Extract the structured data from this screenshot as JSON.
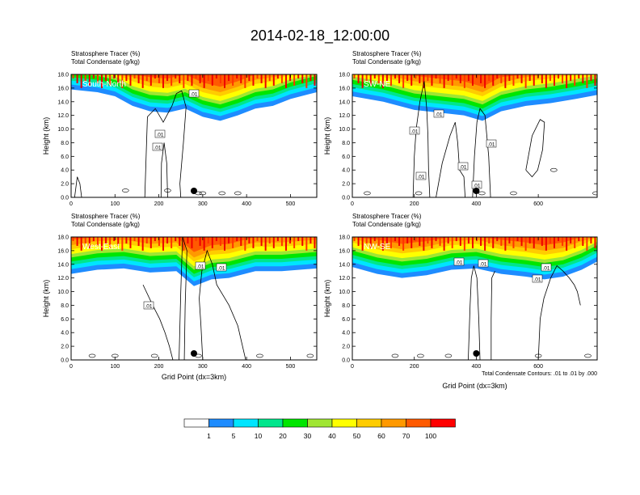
{
  "figure": {
    "title": "2014-02-18_12:00:00",
    "footnote": "Total Condensate Contours: .01 to .01 by .000"
  },
  "colorbar": {
    "colors": [
      "#ffffff",
      "#1e8cff",
      "#00e5ff",
      "#00e68c",
      "#00e600",
      "#a0e632",
      "#ffff00",
      "#ffcc00",
      "#ff9900",
      "#ff5a00",
      "#ff0000"
    ],
    "labels": [
      "1",
      "5",
      "10",
      "20",
      "30",
      "40",
      "50",
      "60",
      "70",
      "100"
    ]
  },
  "chart_data": [
    {
      "type": "contour",
      "panel_label": "South-North",
      "title_lines": [
        "Stratosphere Tracer   (%)",
        "Total Condensate   (g/kg)"
      ],
      "ylabel": "Height (km)",
      "xlabel": "",
      "xlim": [
        0,
        560
      ],
      "ylim": [
        0,
        18
      ],
      "x_ticks": [
        "0",
        "100",
        "200",
        "300",
        "400",
        "500"
      ],
      "y_ticks": [
        "0.0",
        "2.0",
        "4.0",
        "6.0",
        "8.0",
        "10.0",
        "12.0",
        "14.0",
        "16.0",
        "18.0"
      ],
      "contour_labels": [
        ".01",
        ".01",
        ".01"
      ],
      "marker_x": 280,
      "tracer_base_km": [
        {
          "x": 0,
          "y": 15.6
        },
        {
          "x": 60,
          "y": 15.2
        },
        {
          "x": 100,
          "y": 14.6
        },
        {
          "x": 140,
          "y": 13.2
        },
        {
          "x": 180,
          "y": 12.4
        },
        {
          "x": 220,
          "y": 12.2
        },
        {
          "x": 260,
          "y": 12.8
        },
        {
          "x": 300,
          "y": 11.6
        },
        {
          "x": 340,
          "y": 11.0
        },
        {
          "x": 380,
          "y": 11.8
        },
        {
          "x": 420,
          "y": 12.8
        },
        {
          "x": 460,
          "y": 13.2
        },
        {
          "x": 500,
          "y": 14.2
        },
        {
          "x": 560,
          "y": 15.2
        }
      ]
    },
    {
      "type": "contour",
      "panel_label": "SW-NE",
      "title_lines": [
        "Stratosphere Tracer   (%)",
        "Total Condensate   (g/kg)"
      ],
      "ylabel": "Height (km)",
      "xlabel": "",
      "xlim": [
        0,
        790
      ],
      "ylim": [
        0,
        18
      ],
      "x_ticks": [
        "0",
        "200",
        "400",
        "600"
      ],
      "y_ticks": [
        "0.0",
        "2.0",
        "4.0",
        "6.0",
        "8.0",
        "10.0",
        "12.0",
        "14.0",
        "16.0",
        "18.0"
      ],
      "contour_labels": [
        ".01",
        ".01",
        ".01",
        ".01",
        ".01",
        ".01"
      ],
      "marker_x": 400,
      "tracer_base_km": [
        {
          "x": 0,
          "y": 14.6
        },
        {
          "x": 100,
          "y": 13.8
        },
        {
          "x": 200,
          "y": 12.6
        },
        {
          "x": 280,
          "y": 12.2
        },
        {
          "x": 360,
          "y": 11.8
        },
        {
          "x": 420,
          "y": 11.0
        },
        {
          "x": 480,
          "y": 12.4
        },
        {
          "x": 560,
          "y": 13.2
        },
        {
          "x": 640,
          "y": 13.6
        },
        {
          "x": 720,
          "y": 14.2
        },
        {
          "x": 790,
          "y": 14.8
        }
      ]
    },
    {
      "type": "contour",
      "panel_label": "West-East",
      "title_lines": [
        "Stratosphere Tracer   (%)",
        "Total Condensate   (g/kg)"
      ],
      "ylabel": "Height (km)",
      "xlabel": "Grid Point (dx=3km)",
      "xlim": [
        0,
        560
      ],
      "ylim": [
        0,
        18
      ],
      "x_ticks": [
        "0",
        "100",
        "200",
        "300",
        "400",
        "500"
      ],
      "y_ticks": [
        "0.0",
        "2.0",
        "4.0",
        "6.0",
        "8.0",
        "10.0",
        "12.0",
        "14.0",
        "16.0",
        "18.0"
      ],
      "contour_labels": [
        ".01",
        ".01",
        ".01"
      ],
      "marker_x": 280,
      "tracer_base_km": [
        {
          "x": 0,
          "y": 12.4
        },
        {
          "x": 60,
          "y": 13.0
        },
        {
          "x": 120,
          "y": 13.2
        },
        {
          "x": 180,
          "y": 12.6
        },
        {
          "x": 240,
          "y": 12.8
        },
        {
          "x": 280,
          "y": 10.6
        },
        {
          "x": 320,
          "y": 11.6
        },
        {
          "x": 360,
          "y": 11.8
        },
        {
          "x": 420,
          "y": 12.8
        },
        {
          "x": 480,
          "y": 12.8
        },
        {
          "x": 560,
          "y": 13.2
        }
      ]
    },
    {
      "type": "contour",
      "panel_label": "NW-SE",
      "title_lines": [
        "Stratosphere Tracer   (%)",
        "Total Condensate   (g/kg)"
      ],
      "ylabel": "Height (km)",
      "xlabel": "Grid Point (dx=3km)",
      "xlim": [
        0,
        790
      ],
      "ylim": [
        0,
        18
      ],
      "x_ticks": [
        "0",
        "200",
        "400",
        "600"
      ],
      "y_ticks": [
        "0.0",
        "2.0",
        "4.0",
        "6.0",
        "8.0",
        "10.0",
        "12.0",
        "14.0",
        "16.0",
        "18.0"
      ],
      "contour_labels": [
        ".01",
        ".01",
        ".01",
        ".01"
      ],
      "marker_x": 400,
      "tracer_base_km": [
        {
          "x": 0,
          "y": 13.4
        },
        {
          "x": 80,
          "y": 12.4
        },
        {
          "x": 160,
          "y": 11.8
        },
        {
          "x": 240,
          "y": 12.2
        },
        {
          "x": 320,
          "y": 13.0
        },
        {
          "x": 400,
          "y": 13.2
        },
        {
          "x": 480,
          "y": 12.4
        },
        {
          "x": 560,
          "y": 12.0
        },
        {
          "x": 620,
          "y": 11.6
        },
        {
          "x": 680,
          "y": 12.0
        },
        {
          "x": 740,
          "y": 13.0
        },
        {
          "x": 790,
          "y": 14.2
        }
      ]
    }
  ]
}
